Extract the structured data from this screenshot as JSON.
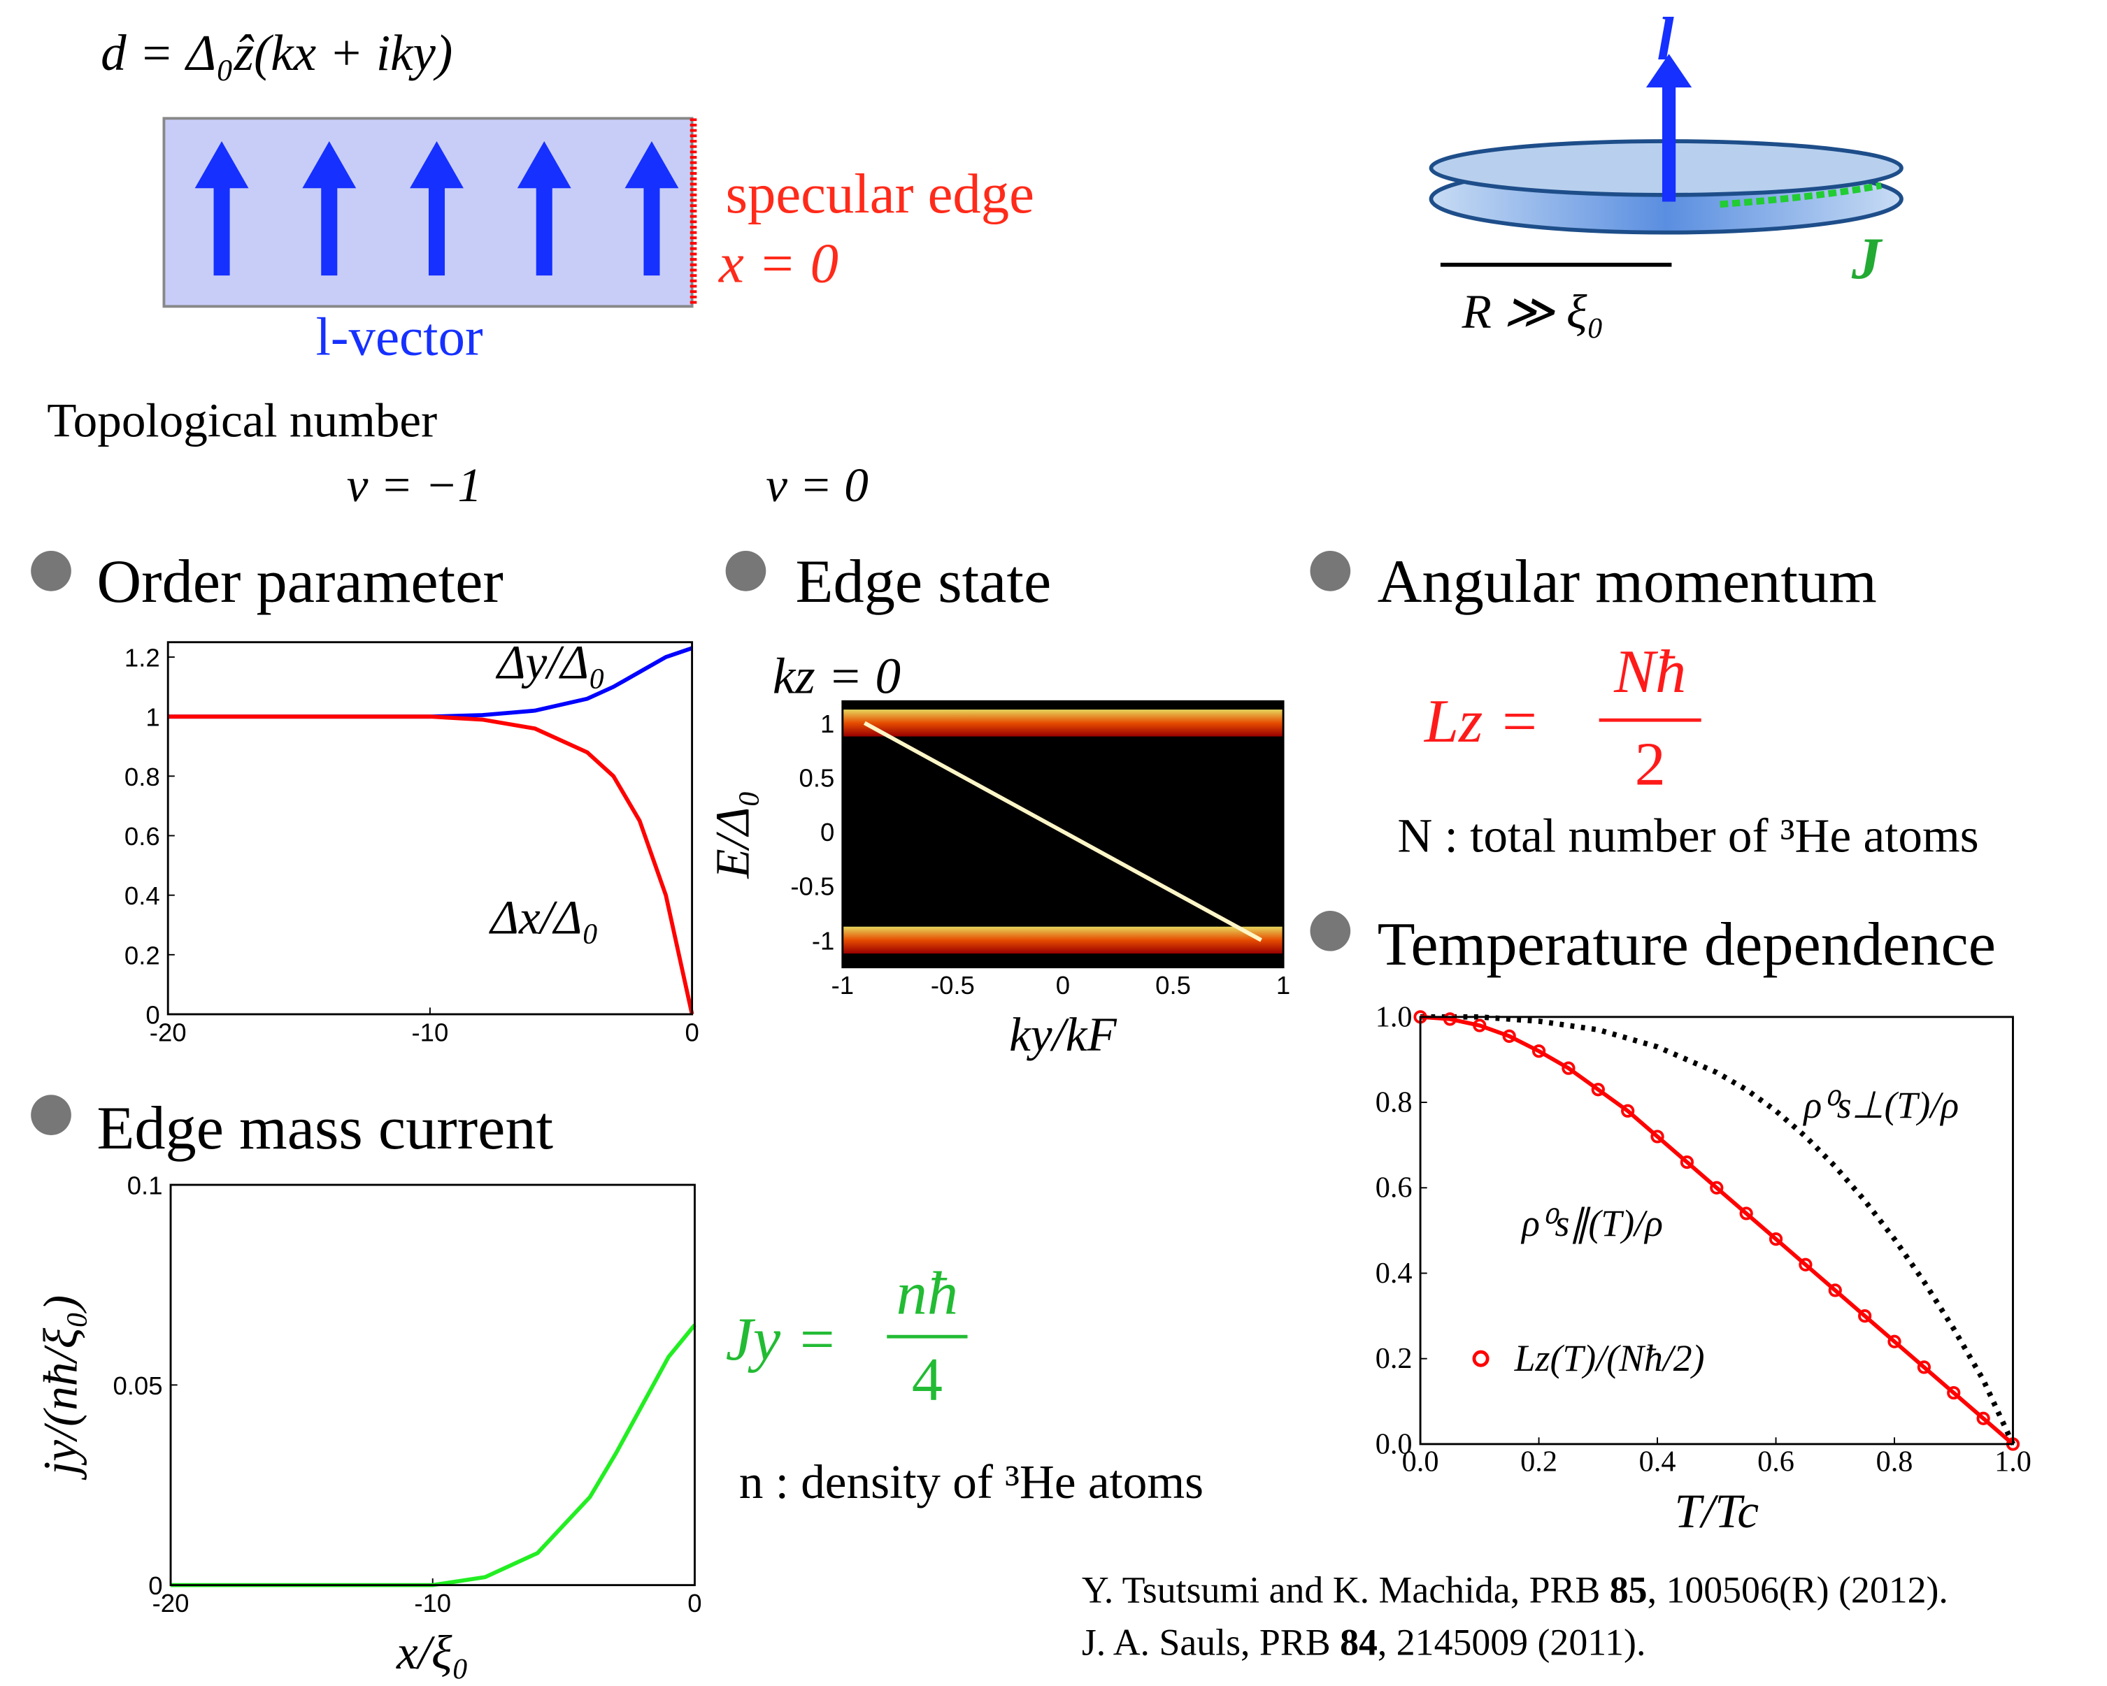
{
  "header": {
    "formula": "d = Δ₀ẑ(kx + iky)",
    "edge_label": "specular edge",
    "edge_position": "x = 0",
    "vector_label": "l-vector",
    "topology_title": "Topological number",
    "nu_left": "ν = −1",
    "nu_right": "ν = 0",
    "disk_l": "l",
    "disk_J": "J",
    "disk_R": "R ≫ ξ₀"
  },
  "sections": {
    "order": "Order parameter",
    "edge": "Edge state",
    "angular": "Angular momentum",
    "temperature": "Temperature dependence",
    "current": "Edge mass current"
  },
  "angular": {
    "lhs": "Lz =",
    "numerator": "Nħ",
    "denominator": "2",
    "note": "N : total number of ³He atoms"
  },
  "current": {
    "lhs": "Jy =",
    "numerator": "nħ",
    "denominator": "4",
    "note": "n : density of ³He atoms"
  },
  "references": [
    {
      "pre": "Y. Tsutsumi and K. Machida, PRB ",
      "vol": "85",
      "post": ", 100506(R) (2012)."
    },
    {
      "pre": "J. A. Sauls, PRB ",
      "vol": "84",
      "post": ", 2145009 (2011)."
    }
  ],
  "chart_data": [
    {
      "type": "line",
      "x": [
        -20,
        -15,
        -10,
        -8,
        -6,
        -4,
        -3,
        -2,
        -1,
        0
      ],
      "xlim": [
        -20,
        0
      ],
      "ylim": [
        0,
        1.25
      ],
      "xticks": [
        -20,
        -10,
        0
      ],
      "yticks": [
        0,
        0.2,
        0.4,
        0.6,
        0.8,
        1,
        1.2
      ],
      "series": [
        {
          "name": "Δy/Δ₀",
          "color": "#0000ff",
          "values": [
            1,
            1,
            1,
            1.005,
            1.02,
            1.06,
            1.1,
            1.15,
            1.2,
            1.23
          ]
        },
        {
          "name": "Δx/Δ₀",
          "color": "#ff0000",
          "values": [
            1,
            1,
            1,
            0.99,
            0.96,
            0.88,
            0.8,
            0.65,
            0.4,
            0
          ]
        }
      ]
    },
    {
      "type": "spectrum",
      "title": "kz = 0",
      "xlabel": "ky/kF",
      "ylabel": "E/Δ₀",
      "xlim": [
        -1,
        1
      ],
      "ylim": [
        -1.25,
        1.2
      ],
      "xticks": [
        -1,
        -0.5,
        0,
        0.5,
        1
      ],
      "yticks": [
        -1,
        -0.5,
        0,
        0.5,
        1
      ],
      "series": [
        {
          "color": "#fff6c8",
          "x": [
            -0.9,
            0.9
          ],
          "values": [
            1,
            -1
          ]
        }
      ]
    },
    {
      "type": "line",
      "xlabel": "x/ξ₀",
      "ylabel": "jy/(nħ/ξ₀)",
      "x": [
        -20,
        -15,
        -10,
        -8,
        -6,
        -4,
        -3,
        -2,
        -1,
        0
      ],
      "xlim": [
        -20,
        0
      ],
      "ylim": [
        0,
        0.1
      ],
      "xticks": [
        -20,
        -10,
        0
      ],
      "yticks": [
        0,
        0.05,
        0.1
      ],
      "series": [
        {
          "color": "#22ee22",
          "values": [
            0,
            0,
            0,
            0.002,
            0.008,
            0.022,
            0.033,
            0.045,
            0.057,
            0.065
          ]
        }
      ]
    },
    {
      "type": "line",
      "xlabel": "T/Tc",
      "x": [
        0,
        0.05,
        0.1,
        0.15,
        0.2,
        0.25,
        0.3,
        0.35,
        0.4,
        0.45,
        0.5,
        0.55,
        0.6,
        0.65,
        0.7,
        0.75,
        0.8,
        0.85,
        0.9,
        0.95,
        1
      ],
      "xlim": [
        0,
        1
      ],
      "ylim": [
        0,
        1
      ],
      "xticks": [
        {
          "value": 0,
          "label": "0.0"
        },
        {
          "value": 0.2,
          "label": "0.2"
        },
        {
          "value": 0.4,
          "label": "0.4"
        },
        {
          "value": 0.6,
          "label": "0.6"
        },
        {
          "value": 0.8,
          "label": "0.8"
        },
        {
          "value": 1,
          "label": "1.0"
        }
      ],
      "yticks": [
        {
          "value": 0,
          "label": "0.0"
        },
        {
          "value": 0.2,
          "label": "0.2"
        },
        {
          "value": 0.4,
          "label": "0.4"
        },
        {
          "value": 0.6,
          "label": "0.6"
        },
        {
          "value": 0.8,
          "label": "0.8"
        },
        {
          "value": 1,
          "label": "1.0"
        }
      ],
      "annotations": [
        "ρ⁰s∥(T)/ρ"
      ],
      "series": [
        {
          "name": "ρ⁰s⊥(T)/ρ",
          "color": "#000000",
          "dash": true,
          "values": [
            1,
            1,
            1,
            0.995,
            0.99,
            0.98,
            0.97,
            0.95,
            0.93,
            0.9,
            0.87,
            0.83,
            0.78,
            0.72,
            0.65,
            0.57,
            0.48,
            0.38,
            0.27,
            0.15,
            0
          ]
        },
        {
          "name": "Lz(T)/(Nħ/2)",
          "color": "#ff0000",
          "marker": "circle",
          "values": [
            1,
            0.995,
            0.98,
            0.955,
            0.92,
            0.88,
            0.83,
            0.78,
            0.72,
            0.66,
            0.6,
            0.54,
            0.48,
            0.42,
            0.36,
            0.3,
            0.24,
            0.18,
            0.12,
            0.06,
            0
          ]
        }
      ]
    }
  ]
}
